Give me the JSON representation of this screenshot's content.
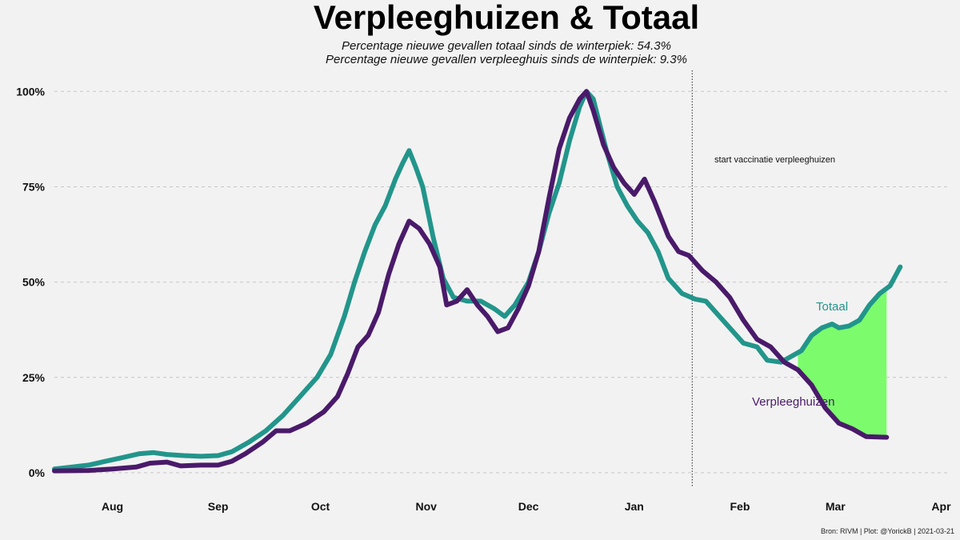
{
  "chart_data": {
    "type": "line",
    "title": "Verpleeghuizen & Totaal",
    "subtitle_lines": [
      "Percentage nieuwe gevallen totaal sinds de winterpiek: 54.3%",
      "Percentage nieuwe gevallen verpleeghuis sinds de winterpiek: 9.3%"
    ],
    "y_ticks": [
      {
        "value": 0,
        "label": "0%"
      },
      {
        "value": 25,
        "label": "25%"
      },
      {
        "value": 50,
        "label": "50%"
      },
      {
        "value": 75,
        "label": "75%"
      },
      {
        "value": 100,
        "label": "100%"
      }
    ],
    "x_ticks": [
      {
        "date": "2020-08-01",
        "label": "Aug"
      },
      {
        "date": "2020-09-01",
        "label": "Sep"
      },
      {
        "date": "2020-10-01",
        "label": "Oct"
      },
      {
        "date": "2020-11-01",
        "label": "Nov"
      },
      {
        "date": "2020-12-01",
        "label": "Dec"
      },
      {
        "date": "2021-01-01",
        "label": "Jan"
      },
      {
        "date": "2021-02-01",
        "label": "Feb"
      },
      {
        "date": "2021-03-01",
        "label": "Mar"
      },
      {
        "date": "2021-04-01",
        "label": "Apr"
      }
    ],
    "xlim": [
      "2020-07-15",
      "2021-04-03"
    ],
    "ylim": [
      -4,
      103
    ],
    "grid": "horizontal dashed",
    "annotation": {
      "date": "2021-01-18",
      "label": "start vaccinatie verpleeghuizen"
    },
    "fill_between": {
      "from": "2021-02-18",
      "to": "2021-03-16",
      "color": "#7cfc6c"
    },
    "series": [
      {
        "name": "Totaal",
        "color": "#22958b",
        "points": [
          [
            "2020-07-15",
            1
          ],
          [
            "2020-07-20",
            1.5
          ],
          [
            "2020-07-25",
            2
          ],
          [
            "2020-07-30",
            3
          ],
          [
            "2020-08-04",
            4
          ],
          [
            "2020-08-09",
            5
          ],
          [
            "2020-08-13",
            5.3
          ],
          [
            "2020-08-17",
            4.8
          ],
          [
            "2020-08-22",
            4.5
          ],
          [
            "2020-08-27",
            4.3
          ],
          [
            "2020-09-01",
            4.5
          ],
          [
            "2020-09-05",
            5.5
          ],
          [
            "2020-09-10",
            8
          ],
          [
            "2020-09-15",
            11
          ],
          [
            "2020-09-20",
            15
          ],
          [
            "2020-09-25",
            20
          ],
          [
            "2020-09-30",
            25
          ],
          [
            "2020-10-04",
            31
          ],
          [
            "2020-10-08",
            41
          ],
          [
            "2020-10-11",
            50
          ],
          [
            "2020-10-14",
            58
          ],
          [
            "2020-10-17",
            65
          ],
          [
            "2020-10-20",
            70
          ],
          [
            "2020-10-23",
            77
          ],
          [
            "2020-10-25",
            81
          ],
          [
            "2020-10-27",
            84.5
          ],
          [
            "2020-10-29",
            80
          ],
          [
            "2020-10-31",
            75
          ],
          [
            "2020-11-03",
            62
          ],
          [
            "2020-11-06",
            51
          ],
          [
            "2020-11-09",
            46
          ],
          [
            "2020-11-13",
            45
          ],
          [
            "2020-11-17",
            45
          ],
          [
            "2020-11-21",
            43
          ],
          [
            "2020-11-24",
            41
          ],
          [
            "2020-11-27",
            44
          ],
          [
            "2020-12-01",
            50
          ],
          [
            "2020-12-04",
            58
          ],
          [
            "2020-12-07",
            68
          ],
          [
            "2020-12-10",
            76
          ],
          [
            "2020-12-13",
            87
          ],
          [
            "2020-12-16",
            96
          ],
          [
            "2020-12-18",
            100
          ],
          [
            "2020-12-20",
            98
          ],
          [
            "2020-12-22",
            91
          ],
          [
            "2020-12-24",
            84
          ],
          [
            "2020-12-27",
            75
          ],
          [
            "2020-12-30",
            70
          ],
          [
            "2021-01-02",
            66
          ],
          [
            "2021-01-05",
            63
          ],
          [
            "2021-01-08",
            58
          ],
          [
            "2021-01-11",
            51
          ],
          [
            "2021-01-15",
            47
          ],
          [
            "2021-01-19",
            45.5
          ],
          [
            "2021-01-22",
            45
          ],
          [
            "2021-01-25",
            42
          ],
          [
            "2021-01-29",
            38
          ],
          [
            "2021-02-02",
            34
          ],
          [
            "2021-02-06",
            33
          ],
          [
            "2021-02-09",
            29.5
          ],
          [
            "2021-02-13",
            29
          ],
          [
            "2021-02-16",
            30.5
          ],
          [
            "2021-02-19",
            32
          ],
          [
            "2021-02-22",
            36
          ],
          [
            "2021-02-25",
            38
          ],
          [
            "2021-02-28",
            39
          ],
          [
            "2021-03-02",
            38
          ],
          [
            "2021-03-05",
            38.5
          ],
          [
            "2021-03-08",
            40
          ],
          [
            "2021-03-11",
            44
          ],
          [
            "2021-03-14",
            47
          ],
          [
            "2021-03-17",
            49
          ],
          [
            "2021-03-20",
            54
          ]
        ]
      },
      {
        "name": "Verpleeghuizen",
        "color": "#4a1a6a",
        "points": [
          [
            "2020-07-15",
            0.5
          ],
          [
            "2020-07-25",
            0.6
          ],
          [
            "2020-08-01",
            1
          ],
          [
            "2020-08-08",
            1.5
          ],
          [
            "2020-08-12",
            2.5
          ],
          [
            "2020-08-17",
            2.8
          ],
          [
            "2020-08-21",
            1.8
          ],
          [
            "2020-08-27",
            2
          ],
          [
            "2020-09-01",
            2
          ],
          [
            "2020-09-05",
            3
          ],
          [
            "2020-09-09",
            5
          ],
          [
            "2020-09-14",
            8
          ],
          [
            "2020-09-18",
            11
          ],
          [
            "2020-09-22",
            11
          ],
          [
            "2020-09-27",
            13
          ],
          [
            "2020-10-02",
            16
          ],
          [
            "2020-10-06",
            20
          ],
          [
            "2020-10-09",
            26
          ],
          [
            "2020-10-12",
            33
          ],
          [
            "2020-10-15",
            36
          ],
          [
            "2020-10-18",
            42
          ],
          [
            "2020-10-21",
            52
          ],
          [
            "2020-10-24",
            60
          ],
          [
            "2020-10-27",
            66
          ],
          [
            "2020-10-30",
            64
          ],
          [
            "2020-11-02",
            60
          ],
          [
            "2020-11-05",
            54
          ],
          [
            "2020-11-07",
            44
          ],
          [
            "2020-11-10",
            45
          ],
          [
            "2020-11-13",
            48
          ],
          [
            "2020-11-16",
            44
          ],
          [
            "2020-11-19",
            41
          ],
          [
            "2020-11-22",
            37
          ],
          [
            "2020-11-25",
            38
          ],
          [
            "2020-11-28",
            43
          ],
          [
            "2020-12-01",
            49
          ],
          [
            "2020-12-04",
            58
          ],
          [
            "2020-12-07",
            72
          ],
          [
            "2020-12-10",
            85
          ],
          [
            "2020-12-13",
            93
          ],
          [
            "2020-12-16",
            98
          ],
          [
            "2020-12-18",
            100
          ],
          [
            "2020-12-20",
            95
          ],
          [
            "2020-12-23",
            86
          ],
          [
            "2020-12-26",
            80
          ],
          [
            "2020-12-29",
            76
          ],
          [
            "2021-01-01",
            73
          ],
          [
            "2021-01-04",
            77
          ],
          [
            "2021-01-07",
            71
          ],
          [
            "2021-01-11",
            62
          ],
          [
            "2021-01-14",
            58
          ],
          [
            "2021-01-17",
            57
          ],
          [
            "2021-01-21",
            53
          ],
          [
            "2021-01-25",
            50
          ],
          [
            "2021-01-29",
            46
          ],
          [
            "2021-02-02",
            40
          ],
          [
            "2021-02-06",
            35
          ],
          [
            "2021-02-10",
            33
          ],
          [
            "2021-02-14",
            29
          ],
          [
            "2021-02-18",
            27
          ],
          [
            "2021-02-22",
            23
          ],
          [
            "2021-02-26",
            17
          ],
          [
            "2021-03-02",
            13
          ],
          [
            "2021-03-06",
            11.5
          ],
          [
            "2021-03-10",
            9.5
          ],
          [
            "2021-03-16",
            9.3
          ]
        ]
      }
    ]
  },
  "caption": "Bron: RIVM | Plot: @YorickB  |  2021-03-21"
}
